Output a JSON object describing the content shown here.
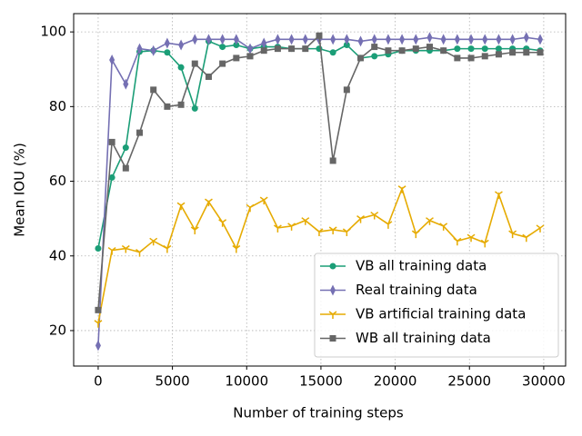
{
  "chart_data": {
    "type": "line",
    "xlabel": "Number of training steps",
    "ylabel": "Mean IOU (%)",
    "x": [
      0,
      930,
      1860,
      2790,
      3720,
      4650,
      5580,
      6510,
      7440,
      8370,
      9300,
      10230,
      11160,
      12090,
      13020,
      13950,
      14880,
      15810,
      16740,
      17670,
      18600,
      19530,
      20460,
      21390,
      22320,
      23250,
      24180,
      25110,
      26040,
      26970,
      27900,
      28830,
      29760
    ],
    "series": [
      {
        "name": "VB all training data",
        "color": "#1b9e77",
        "marker": "circle",
        "values": [
          42,
          61,
          69,
          94.7,
          95,
          94.5,
          90.5,
          79.5,
          97.5,
          96,
          96.5,
          95.5,
          96,
          96,
          95.5,
          95.5,
          95.5,
          94.5,
          96.5,
          93,
          93.5,
          94,
          95,
          95,
          95,
          95,
          95.5,
          95.5,
          95.5,
          95.5,
          95.5,
          95.5,
          95
        ]
      },
      {
        "name": "Real training data",
        "color": "#7570b3",
        "marker": "diamond",
        "values": [
          16,
          92.5,
          86,
          95.5,
          95,
          97,
          96.5,
          98,
          98,
          98,
          98,
          95.5,
          97,
          98,
          98,
          98,
          98,
          98,
          98,
          97.5,
          98,
          98,
          98,
          98,
          98.5,
          98,
          98,
          98,
          98,
          98,
          98,
          98.5,
          98
        ]
      },
      {
        "name": "VB artificial training data",
        "color": "#e6ab02",
        "marker": "tick",
        "values": [
          22,
          41.5,
          42,
          41,
          44,
          42,
          53.5,
          47,
          54.5,
          49,
          42,
          53,
          55,
          47.5,
          48,
          49.5,
          46.5,
          47,
          46.5,
          50,
          51,
          48.5,
          58,
          46,
          49.5,
          48,
          44,
          45,
          43.5,
          56.5,
          46,
          45,
          47.5
        ]
      },
      {
        "name": "WB all training data",
        "color": "#666666",
        "marker": "square",
        "values": [
          25.5,
          70.5,
          63.5,
          73,
          84.5,
          80,
          80.5,
          91.5,
          88,
          91.5,
          93,
          93.5,
          95,
          95.5,
          95.5,
          95.5,
          99,
          65.5,
          84.5,
          93,
          96,
          95,
          95,
          95.5,
          96,
          95,
          93,
          93,
          93.5,
          94,
          94.5,
          94.5,
          94.5
        ]
      }
    ],
    "xlim": [
      -1650,
      31475
    ],
    "ylim": [
      10.5,
      104.9
    ],
    "xticks": [
      0,
      5000,
      10000,
      15000,
      20000,
      25000,
      30000
    ],
    "yticks": [
      20,
      40,
      60,
      80,
      100
    ],
    "grid": true,
    "legend": "lower right"
  }
}
